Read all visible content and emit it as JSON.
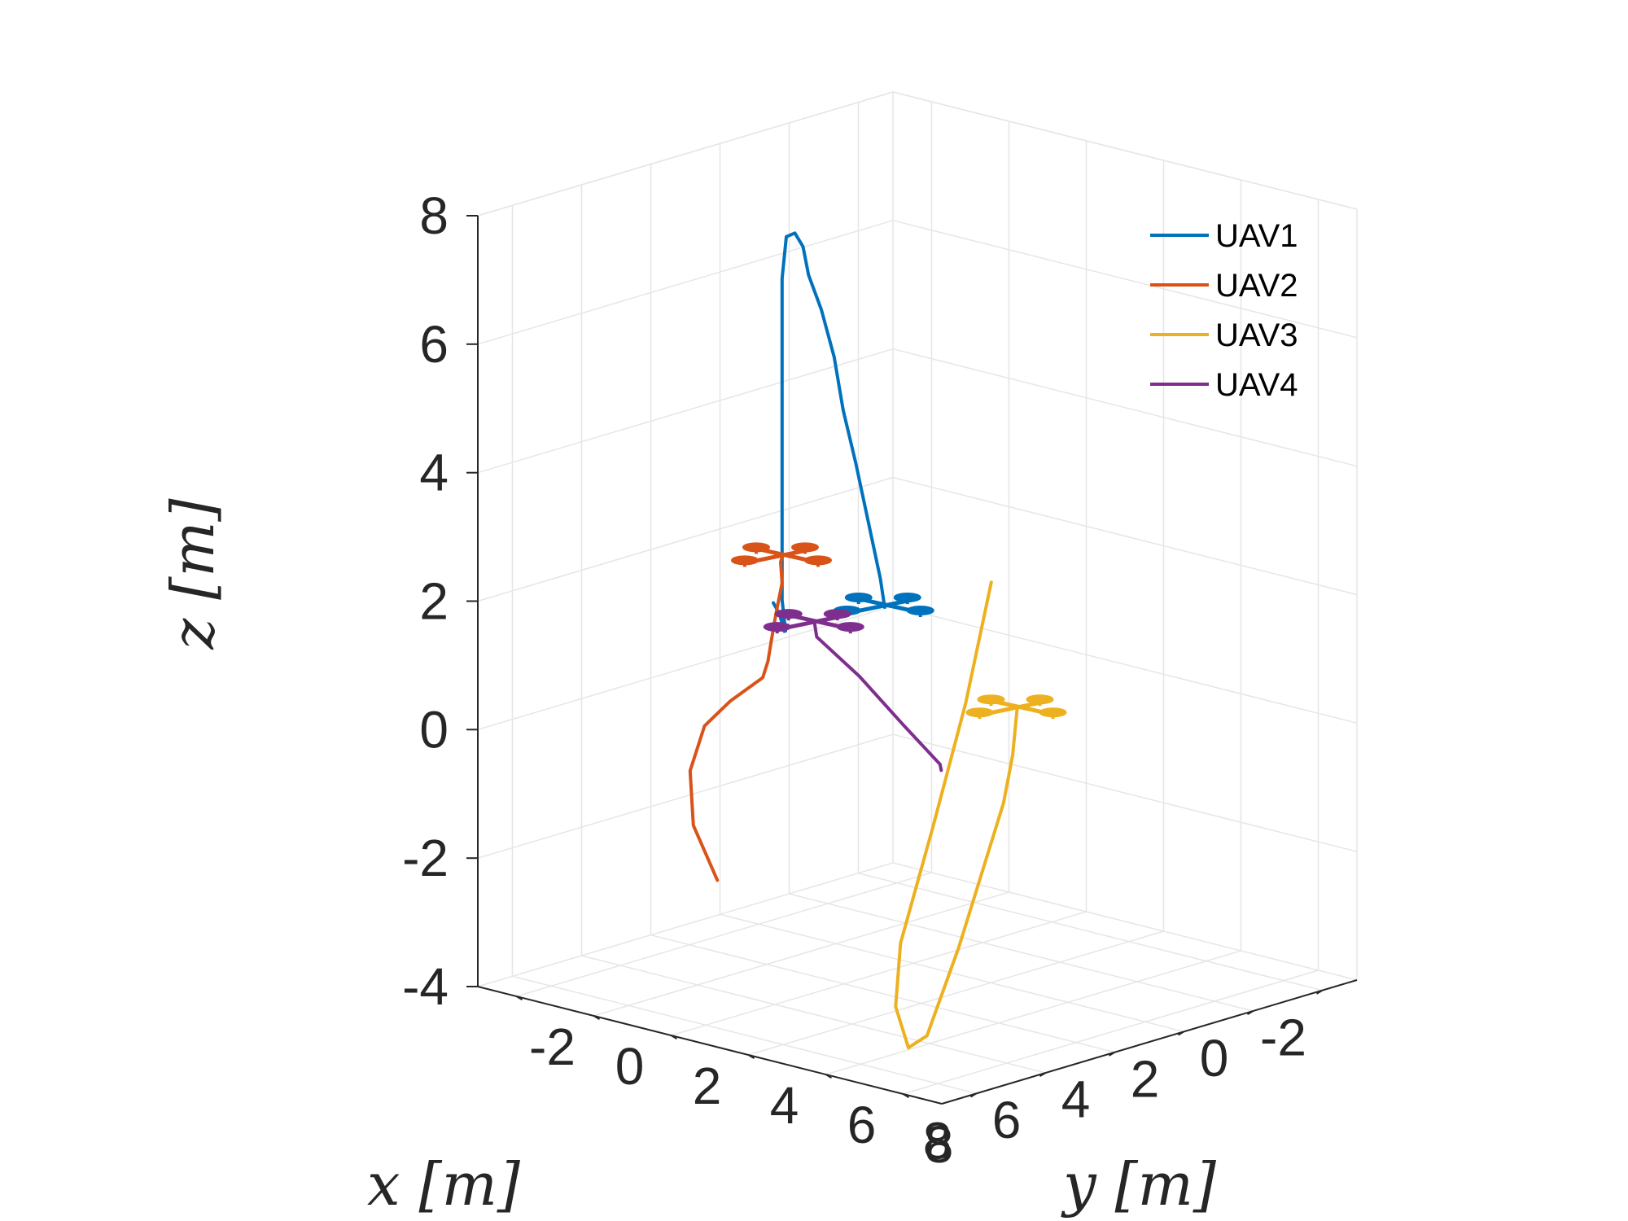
{
  "chart_data": {
    "type": "line3d",
    "title": "",
    "xlabel": "x [m]",
    "ylabel": "y [m]",
    "zlabel": "z [m]",
    "xlim": [
      -3,
      9
    ],
    "ylim": [
      -3,
      9
    ],
    "zlim": [
      -4,
      8
    ],
    "x_ticks": [
      "-2",
      "0",
      "2",
      "4",
      "6",
      "8"
    ],
    "y_ticks": [
      "-2",
      "0",
      "2",
      "4",
      "6",
      "8"
    ],
    "z_ticks": [
      "-4",
      "-2",
      "0",
      "2",
      "4",
      "6",
      "8"
    ],
    "grid": true,
    "legend_position": "top-right",
    "series": [
      {
        "name": "UAV1",
        "color": "#0072BD",
        "points": [
          [
            1.8,
            -1.8,
            1.0
          ],
          [
            3.3,
            -0.3,
            1.3
          ],
          [
            4.5,
            0.9,
            1.4
          ],
          [
            4.8,
            1.2,
            1.5
          ],
          [
            4.9,
            1.2,
            2.0
          ],
          [
            4.9,
            1.2,
            7.0
          ],
          [
            5.0,
            1.4,
            7.7
          ],
          [
            5.2,
            1.8,
            7.85
          ],
          [
            5.3,
            2.1,
            7.7
          ],
          [
            5.7,
            2.6,
            7.4
          ],
          [
            6.0,
            3.2,
            7.0
          ],
          [
            6.3,
            3.8,
            6.4
          ],
          [
            6.6,
            4.3,
            5.7
          ],
          [
            6.8,
            4.8,
            5.0
          ],
          [
            7.0,
            5.3,
            4.2
          ],
          [
            7.2,
            5.8,
            3.4
          ],
          [
            7.3,
            6.0,
            3.0
          ]
        ],
        "start": [
          7.3,
          6.0,
          3.0
        ]
      },
      {
        "name": "UAV2",
        "color": "#D95319",
        "points": [
          [
            8.0,
            2.3,
            -1.7
          ],
          [
            7.8,
            1.5,
            -1.0
          ],
          [
            7.0,
            0.7,
            -0.4
          ],
          [
            5.8,
            0.0,
            0.0
          ],
          [
            4.5,
            -0.5,
            0.1
          ],
          [
            3.0,
            -1.0,
            0.15
          ],
          [
            2.4,
            -1.4,
            0.25
          ],
          [
            2.2,
            -1.5,
            0.5
          ],
          [
            2.4,
            -1.2,
            1.0
          ],
          [
            3.0,
            -0.5,
            1.7
          ],
          [
            3.6,
            0.0,
            2.2
          ],
          [
            4.0,
            0.4,
            2.4
          ]
        ],
        "start": [
          4.0,
          0.4,
          2.4
        ]
      },
      {
        "name": "UAV3",
        "color": "#EDB120",
        "points": [
          [
            1.2,
            3.3,
            2.0
          ],
          [
            2.5,
            3.8,
            0.4
          ],
          [
            4.0,
            4.3,
            -1.2
          ],
          [
            5.5,
            4.8,
            -2.7
          ],
          [
            6.2,
            5.3,
            -3.5
          ],
          [
            6.5,
            5.9,
            -4.0
          ],
          [
            6.3,
            6.2,
            -3.8
          ],
          [
            5.6,
            6.4,
            -2.5
          ],
          [
            4.2,
            6.3,
            -0.5
          ],
          [
            3.6,
            6.0,
            0.1
          ],
          [
            2.8,
            5.4,
            0.6
          ]
        ],
        "start": [
          2.8,
          5.4,
          0.6
        ]
      },
      {
        "name": "UAV4",
        "color": "#7E2F8E",
        "points": [
          [
            6.0,
            6.3,
            0.3
          ],
          [
            5.7,
            6.0,
            0.3
          ],
          [
            4.5,
            4.0,
            0.4
          ],
          [
            3.0,
            1.5,
            0.55
          ],
          [
            2.0,
            -0.5,
            0.7
          ],
          [
            1.5,
            -1.0,
            0.75
          ]
        ],
        "start": [
          1.5,
          -1.0,
          0.75
        ]
      }
    ]
  }
}
